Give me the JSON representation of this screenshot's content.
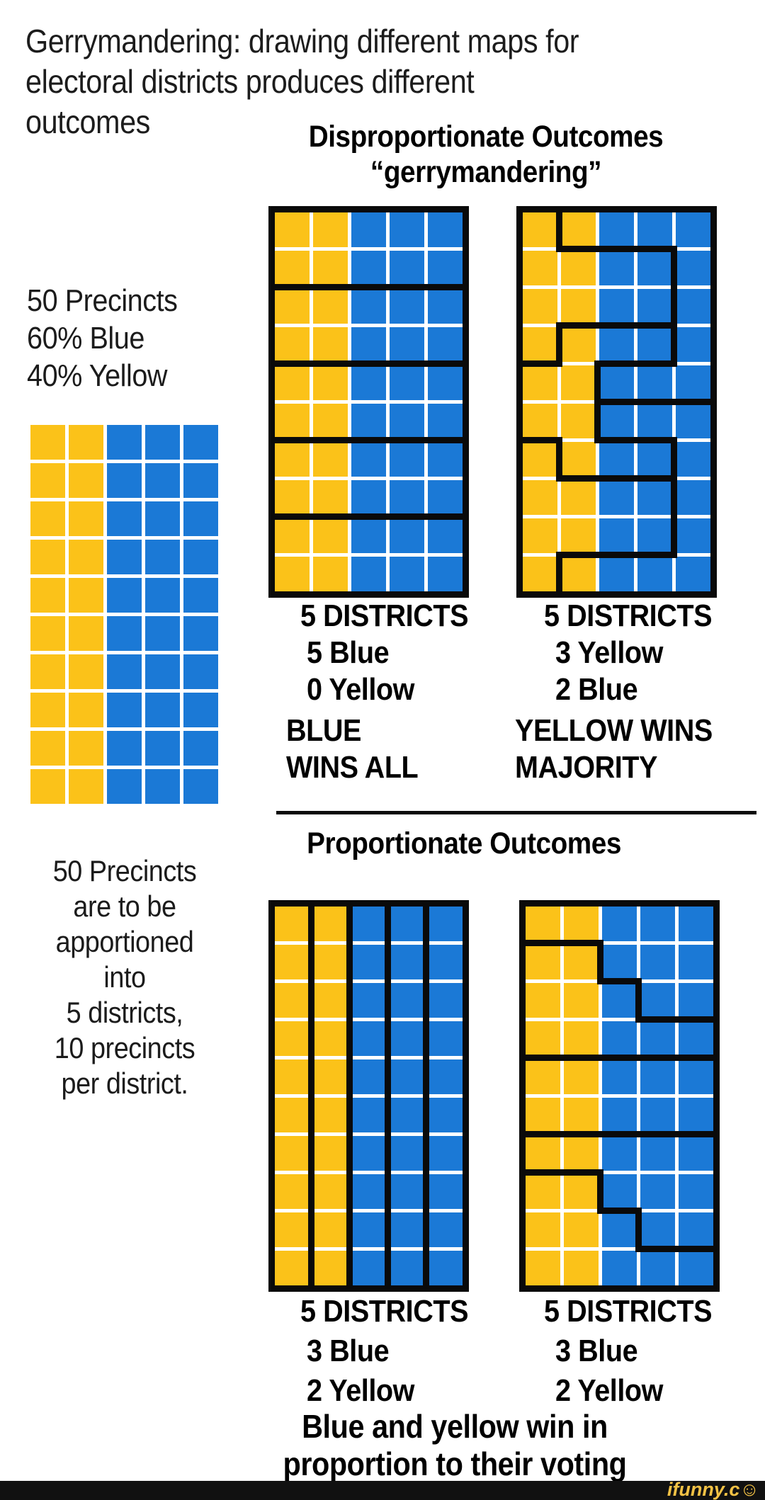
{
  "title": {
    "line1": "Gerrymandering: drawing different maps for",
    "line2": "electoral districts produces different outcomes"
  },
  "sections": {
    "top": {
      "heading1": "Disproportionate Outcomes",
      "heading2": "“gerrymandering”"
    },
    "bottom": {
      "heading": "Proportionate Outcomes"
    }
  },
  "left_panel": {
    "stats": [
      "50 Precincts",
      "60% Blue",
      "40% Yellow"
    ],
    "description": [
      "50 Precincts",
      "are to be",
      "apportioned",
      "into",
      "5 districts,",
      "10 precincts",
      "per district."
    ]
  },
  "colors": {
    "yellow": "#FBC219",
    "blue": "#1B79D6",
    "line": "#0a0a0a",
    "watermark_gold": "#F3C245",
    "bar_black": "#111111"
  },
  "grids": {
    "reference": {
      "rows": [
        "YYBBB",
        "YYBBB",
        "YYBBB",
        "YYBBB",
        "YYBBB",
        "YYBBB",
        "YYBBB",
        "YYBBB",
        "YYBBB",
        "YYBBB"
      ],
      "districts": null
    },
    "gerry_blocks": {
      "rows": [
        "YYBBB",
        "YYBBB",
        "YYBBB",
        "YYBBB",
        "YYBBB",
        "YYBBB",
        "YYBBB",
        "YYBBB",
        "YYBBB",
        "YYBBB"
      ],
      "districts": [
        "AAAAA",
        "AAAAA",
        "BBBBB",
        "BBBBB",
        "CCCCC",
        "CCCCC",
        "DDDDD",
        "DDDDD",
        "EEEEE",
        "EEEEE"
      ]
    },
    "gerry_snake": {
      "rows": [
        "YYBBB",
        "YYBBB",
        "YYBBB",
        "YYBBB",
        "YYBBB",
        "YYBBB",
        "YYBBB",
        "YYBBB",
        "YYBBB",
        "YYBBB"
      ],
      "districts": [
        "ABBBB",
        "AAAAB",
        "AAAAB",
        "ACCCB",
        "CCBBB",
        "CCDDD",
        "ECCCD",
        "EEEED",
        "EEEED",
        "EDDDD"
      ]
    },
    "prop_columns": {
      "rows": [
        "YYBBB",
        "YYBBB",
        "YYBBB",
        "YYBBB",
        "YYBBB",
        "YYBBB",
        "YYBBB",
        "YYBBB",
        "YYBBB",
        "YYBBB"
      ],
      "districts": [
        "ABCDE",
        "ABCDE",
        "ABCDE",
        "ABCDE",
        "ABCDE",
        "ABCDE",
        "ABCDE",
        "ABCDE",
        "ABCDE",
        "ABCDE"
      ]
    },
    "prop_steps": {
      "rows": [
        "YYBBB",
        "YYBBB",
        "YYBBB",
        "YYBBB",
        "YYBBB",
        "YYBBB",
        "YYBBB",
        "YYBBB",
        "YYBBB",
        "YYBBB"
      ],
      "districts": [
        "AAAAA",
        "BBAAA",
        "BBBAA",
        "BBBBB",
        "CCCCC",
        "CCCCC",
        "DDDDD",
        "EEDDD",
        "EEEDD",
        "EEEEE"
      ]
    }
  },
  "results": {
    "gerry_blocks": {
      "districts": "5 DISTRICTS",
      "count1": "5 Blue",
      "count2": "0 Yellow",
      "outcome1": "BLUE",
      "outcome2": "WINS ALL"
    },
    "gerry_snake": {
      "districts": "5 DISTRICTS",
      "count1": "3 Yellow",
      "count2": "2 Blue",
      "outcome1": "YELLOW WINS",
      "outcome2": "MAJORITY"
    },
    "prop_columns": {
      "districts": "5 DISTRICTS",
      "count1": "3 Blue",
      "count2": "2 Yellow"
    },
    "prop_steps": {
      "districts": "5 DISTRICTS",
      "count1": "3 Blue",
      "count2": "2 Yellow"
    }
  },
  "caption": {
    "line1": "Blue and yellow win in",
    "line2": "proportion to their voting"
  },
  "watermark": {
    "text": "ifunny.c",
    "smiley": "☺"
  }
}
